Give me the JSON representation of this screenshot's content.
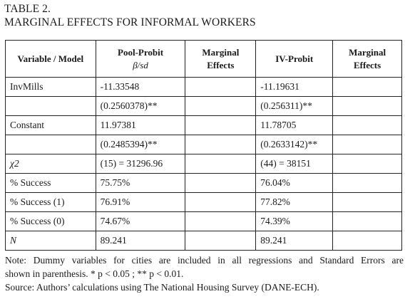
{
  "caption": {
    "line1": "TABLE 2.",
    "line2": "MARGINAL EFFECTS FOR INFORMAL WORKERS"
  },
  "table": {
    "headers": {
      "col1": "Variable / Model",
      "col2_line1": "Pool-Probit",
      "col2_line2": "β/sd",
      "col3_line1": "Marginal",
      "col3_line2": "Effects",
      "col4": "IV-Probit",
      "col5_line1": "Marginal",
      "col5_line2": "Effects"
    },
    "rows": [
      [
        "InvMills",
        "-11.33548",
        "",
        "-11.19631",
        ""
      ],
      [
        "",
        "(0.2560378)**",
        "",
        "(0.256311)**",
        ""
      ],
      [
        "Constant",
        "11.97381",
        "",
        "11.78705",
        ""
      ],
      [
        "",
        "(0.2485394)**",
        "",
        "(0.2633142)**",
        ""
      ],
      [
        "χ2",
        "(15) = 31296.96",
        "",
        "(44) = 38151",
        ""
      ],
      [
        "% Success",
        "75.75%",
        "",
        "76.04%",
        ""
      ],
      [
        "% Success (1)",
        "76.91%",
        "",
        "77.82%",
        ""
      ],
      [
        "% Success (0)",
        "74.67%",
        "",
        "74.39%",
        ""
      ],
      [
        "N",
        "89.241",
        "",
        "89.241",
        ""
      ]
    ]
  },
  "notes": {
    "line1": "Note: Dummy variables for cities are included in all regressions and Standard Errors are",
    "line2": "shown in parenthesis. * p < 0.05 ; ** p < 0.01.",
    "line3": "Source: Authors’ calculations using The National Housing Survey (DANE-ECH)."
  }
}
